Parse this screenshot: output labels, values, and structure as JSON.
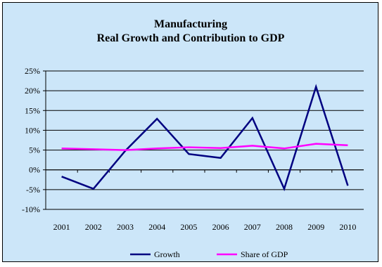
{
  "chart_data": {
    "type": "line",
    "title": [
      "Manufacturing",
      "Real Growth and Contribution to GDP"
    ],
    "xlabel": "",
    "ylabel": "",
    "categories": [
      "2001",
      "2002",
      "2003",
      "2004",
      "2005",
      "2006",
      "2007",
      "2008",
      "2009",
      "2010"
    ],
    "yticks": [
      "25%",
      "20%",
      "15%",
      "10%",
      "5%",
      "0%",
      "-5%",
      "-10%"
    ],
    "ytick_values": [
      25,
      20,
      15,
      10,
      5,
      0,
      -5,
      -10
    ],
    "ylim": [
      -10,
      25
    ],
    "grid": true,
    "legend_position": "bottom",
    "series": [
      {
        "name": "Growth",
        "color": "#000080",
        "values": [
          -1.7,
          -4.8,
          4.8,
          12.9,
          4.0,
          3.0,
          13.1,
          -4.8,
          21.0,
          -4.0
        ]
      },
      {
        "name": "Share of GDP",
        "color": "#ff00ff",
        "values": [
          5.4,
          5.2,
          5.0,
          5.4,
          5.7,
          5.5,
          6.1,
          5.4,
          6.6,
          6.2
        ]
      }
    ]
  }
}
